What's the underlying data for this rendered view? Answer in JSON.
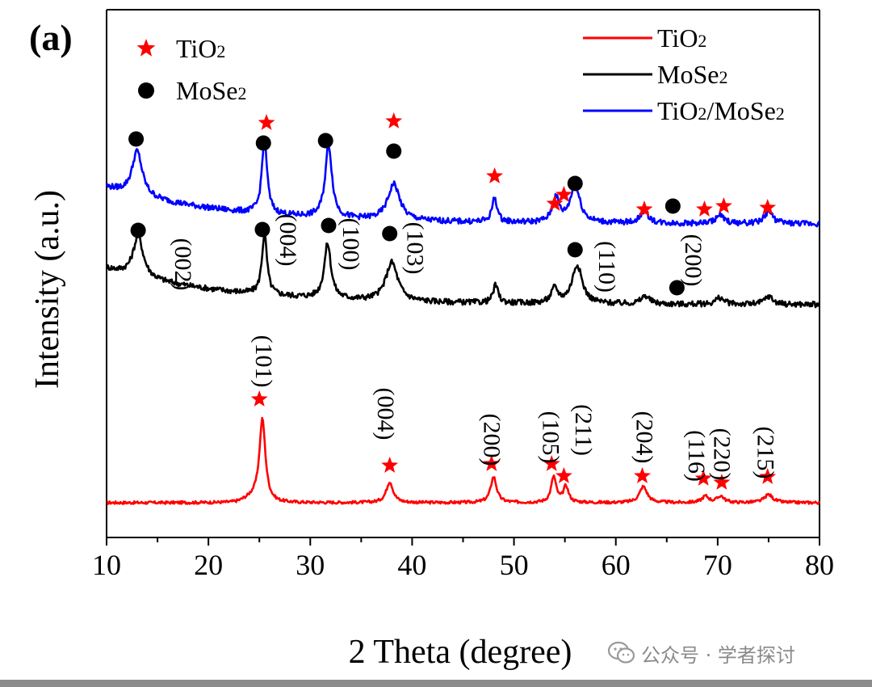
{
  "panel_label": "(a)",
  "watermark": {
    "text": "公众号 · 学者探讨",
    "icon": "wechat-icon"
  },
  "chart_data": {
    "type": "line",
    "xlabel": "2 Theta (degree)",
    "ylabel": "Intensity (a.u.)",
    "xlim": [
      10,
      80
    ],
    "x_ticks": [
      10,
      20,
      30,
      40,
      50,
      60,
      70,
      80
    ],
    "y_ticks": [],
    "grid": false,
    "series": [
      {
        "name": "TiO2",
        "name_main": "TiO",
        "name_sub": "2",
        "color": "#ff0000",
        "baseline": 0.0,
        "peaks": [
          [
            25.3,
            1.0,
            0.35
          ],
          [
            37.8,
            0.26,
            0.4
          ],
          [
            48.0,
            0.32,
            0.35
          ],
          [
            53.9,
            0.32,
            0.3
          ],
          [
            55.1,
            0.2,
            0.3
          ],
          [
            62.7,
            0.2,
            0.45
          ],
          [
            68.8,
            0.08,
            0.4
          ],
          [
            70.3,
            0.08,
            0.4
          ],
          [
            75.0,
            0.1,
            0.5
          ]
        ]
      },
      {
        "name": "MoSe2",
        "name_main": "MoSe",
        "name_sub": "2",
        "color": "#000000",
        "baseline": 2.45,
        "peaks": [
          [
            13.1,
            0.5,
            0.6
          ],
          [
            25.5,
            0.75,
            0.3
          ],
          [
            31.7,
            0.68,
            0.4
          ],
          [
            38.0,
            0.48,
            0.7
          ],
          [
            48.2,
            0.22,
            0.3
          ],
          [
            54.0,
            0.18,
            0.4
          ],
          [
            56.2,
            0.48,
            0.6
          ],
          [
            62.9,
            0.1,
            0.5
          ],
          [
            70.2,
            0.08,
            0.5
          ],
          [
            75.0,
            0.1,
            0.5
          ]
        ]
      },
      {
        "name": "TiO2/MoSe2",
        "name_main": "TiO",
        "name_sub": "2",
        "name_main2": "/MoSe",
        "name_sub2": "2",
        "color": "#0000ff",
        "baseline": 3.45,
        "peaks": [
          [
            13.0,
            0.55,
            0.6
          ],
          [
            25.5,
            0.95,
            0.3
          ],
          [
            31.8,
            0.9,
            0.4
          ],
          [
            38.2,
            0.45,
            0.7
          ],
          [
            48.1,
            0.3,
            0.3
          ],
          [
            54.1,
            0.3,
            0.4
          ],
          [
            56.0,
            0.45,
            0.6
          ],
          [
            62.8,
            0.15,
            0.5
          ],
          [
            70.2,
            0.1,
            0.5
          ],
          [
            75.0,
            0.15,
            0.5
          ]
        ]
      }
    ],
    "legend_position": "top-right",
    "marker_legend": [
      {
        "symbol": "star",
        "color": "#ff0000",
        "label_main": "TiO",
        "label_sub": "2"
      },
      {
        "symbol": "circle",
        "color": "#000000",
        "label_main": "MoSe",
        "label_sub": "2"
      }
    ],
    "markers": [
      {
        "series": "TiO2/MoSe2",
        "symbol": "circle",
        "x": [
          12.9,
          25.4,
          31.5,
          38.2,
          56.0,
          65.6
        ],
        "y": [
          4.5,
          4.45,
          4.48,
          4.35,
          3.95,
          3.67
        ]
      },
      {
        "series": "TiO2/MoSe2",
        "symbol": "star",
        "x": [
          25.7,
          38.2,
          48.1,
          54.0,
          54.9,
          62.8,
          68.7,
          70.6,
          74.9
        ],
        "y": [
          4.7,
          4.72,
          4.04,
          3.7,
          3.81,
          3.63,
          3.63,
          3.67,
          3.65
        ]
      },
      {
        "series": "MoSe2",
        "symbol": "circle",
        "x": [
          13.1,
          25.3,
          31.8,
          37.8,
          56.0,
          66.0
        ],
        "y": [
          3.37,
          3.38,
          3.43,
          3.33,
          3.13,
          2.66
        ]
      },
      {
        "series": "TiO2",
        "symbol": "star",
        "x": [
          25.0,
          37.8,
          47.8,
          53.7,
          54.9,
          62.6,
          68.6,
          70.4,
          74.9
        ],
        "y": [
          1.28,
          0.46,
          0.48,
          0.48,
          0.33,
          0.33,
          0.3,
          0.25,
          0.32
        ]
      }
    ],
    "annotations": [
      {
        "text": "(002)",
        "x": 17.5,
        "y": 2.95
      },
      {
        "text": "(004)",
        "x": 27.8,
        "y": 3.25
      },
      {
        "text": "(100)",
        "x": 34.0,
        "y": 3.2
      },
      {
        "text": "(103)",
        "x": 40.3,
        "y": 3.15
      },
      {
        "text": "(110)",
        "x": 59.1,
        "y": 2.92
      },
      {
        "text": "(200)",
        "x": 67.6,
        "y": 3.0
      },
      {
        "text": "(101)",
        "x": 25.4,
        "y": 1.75
      },
      {
        "text": "(004)",
        "x": 37.4,
        "y": 1.1
      },
      {
        "text": "(200)",
        "x": 47.8,
        "y": 0.78
      },
      {
        "text": "(105)",
        "x": 53.6,
        "y": 0.81
      },
      {
        "text": "(211)",
        "x": 56.8,
        "y": 0.9
      },
      {
        "text": "(204)",
        "x": 62.8,
        "y": 0.81
      },
      {
        "text": "(116)",
        "x": 67.9,
        "y": 0.58
      },
      {
        "text": "(220)",
        "x": 70.4,
        "y": 0.6
      },
      {
        "text": "(215)",
        "x": 74.7,
        "y": 0.62
      }
    ]
  }
}
